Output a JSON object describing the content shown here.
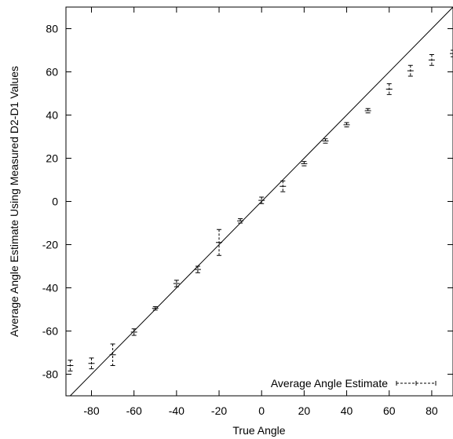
{
  "chart_data": {
    "type": "scatter",
    "xlabel": "True Angle",
    "ylabel": "Average Angle Estimate Using Measured D2-D1 Values",
    "xlim": [
      -92,
      90
    ],
    "ylim": [
      -90,
      90
    ],
    "xticks": [
      -80,
      -60,
      -40,
      -20,
      0,
      20,
      40,
      60,
      80
    ],
    "yticks": [
      -80,
      -60,
      -40,
      -20,
      0,
      20,
      40,
      60,
      80
    ],
    "grid": false,
    "legend_position": "bottom-right",
    "reference_line": {
      "type": "identity",
      "from": [
        -92,
        -92
      ],
      "to": [
        90,
        90
      ]
    },
    "series": [
      {
        "name": "Average Angle Estimate",
        "style": "errorbars",
        "points": [
          {
            "x": -90,
            "y": -76,
            "err": 2.5
          },
          {
            "x": -80,
            "y": -75,
            "err": 2.5
          },
          {
            "x": -70,
            "y": -71,
            "err": 5
          },
          {
            "x": -60,
            "y": -60.5,
            "err": 1.5
          },
          {
            "x": -50,
            "y": -49.5,
            "err": 0.8
          },
          {
            "x": -40,
            "y": -38,
            "err": 1.5
          },
          {
            "x": -30,
            "y": -31.5,
            "err": 1.5
          },
          {
            "x": -20,
            "y": -19,
            "err": 6
          },
          {
            "x": -10,
            "y": -9,
            "err": 1
          },
          {
            "x": 0,
            "y": 0.5,
            "err": 1.5
          },
          {
            "x": 10,
            "y": 7,
            "err": 2.5
          },
          {
            "x": 20,
            "y": 17.5,
            "err": 1
          },
          {
            "x": 30,
            "y": 28,
            "err": 1
          },
          {
            "x": 40,
            "y": 35.5,
            "err": 1
          },
          {
            "x": 50,
            "y": 42,
            "err": 1
          },
          {
            "x": 60,
            "y": 52,
            "err": 2.5
          },
          {
            "x": 70,
            "y": 60.5,
            "err": 2.5
          },
          {
            "x": 80,
            "y": 65.5,
            "err": 2.5
          },
          {
            "x": 90,
            "y": 68.5,
            "err": 1.5
          }
        ]
      }
    ]
  }
}
